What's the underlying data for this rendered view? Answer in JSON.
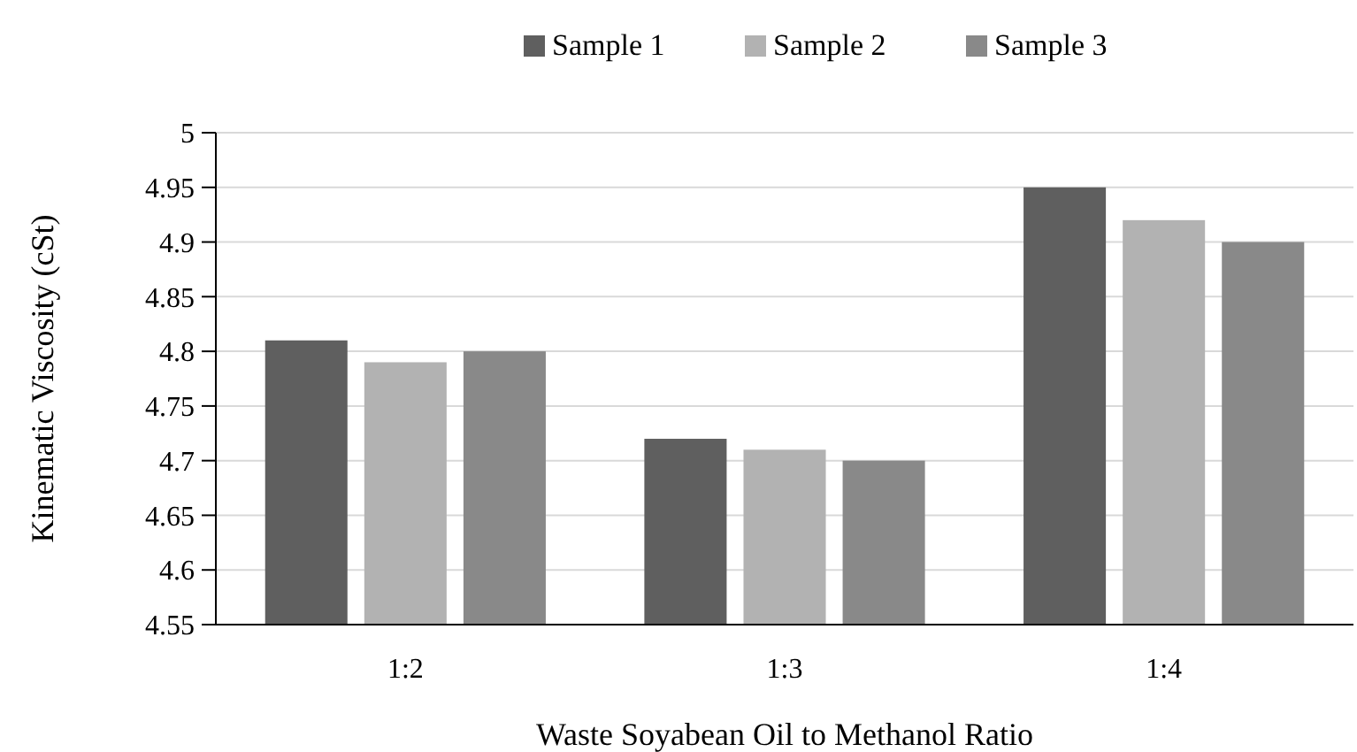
{
  "chart_data": {
    "type": "bar",
    "xlabel": "Waste Soyabean Oil to Methanol Ratio",
    "ylabel": "Kinematic Viscosity (cSt)",
    "categories": [
      "1:2",
      "1:3",
      "1:4"
    ],
    "series": [
      {
        "name": "Sample 1",
        "color": "#5f5f5f",
        "values": [
          4.81,
          4.72,
          4.95
        ]
      },
      {
        "name": "Sample 2",
        "color": "#b2b2b2",
        "values": [
          4.79,
          4.71,
          4.92
        ]
      },
      {
        "name": "Sample 3",
        "color": "#898989",
        "values": [
          4.8,
          4.7,
          4.9
        ]
      }
    ],
    "ylim": [
      4.55,
      5
    ],
    "yticks": [
      4.55,
      4.6,
      4.65,
      4.7,
      4.75,
      4.8,
      4.85,
      4.9,
      4.95,
      5
    ],
    "grid": "y",
    "legend": "top"
  }
}
